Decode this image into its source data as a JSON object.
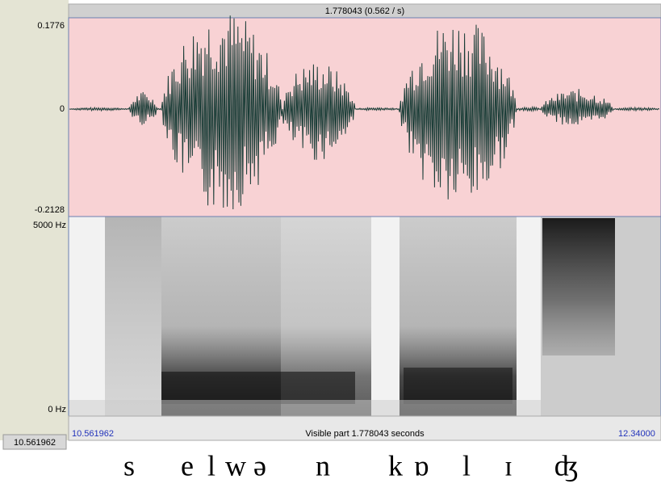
{
  "header": {
    "title": "1.778043 (0.562 / s)"
  },
  "waveform": {
    "max_label": "0.1776",
    "zero_label": "0",
    "min_label": "-0.2128"
  },
  "spectrogram": {
    "top_label": "5000 Hz",
    "bottom_label": "0 Hz"
  },
  "footer": {
    "cursor": "10.561962",
    "start": "10.561962",
    "visible": "Visible part 1.778043 seconds",
    "end": "12.34000"
  },
  "transcription": [
    "s",
    "e",
    "l",
    "w",
    "ə",
    "n",
    "k",
    "ɒ",
    "l",
    "ɪ",
    "ʤ"
  ]
}
